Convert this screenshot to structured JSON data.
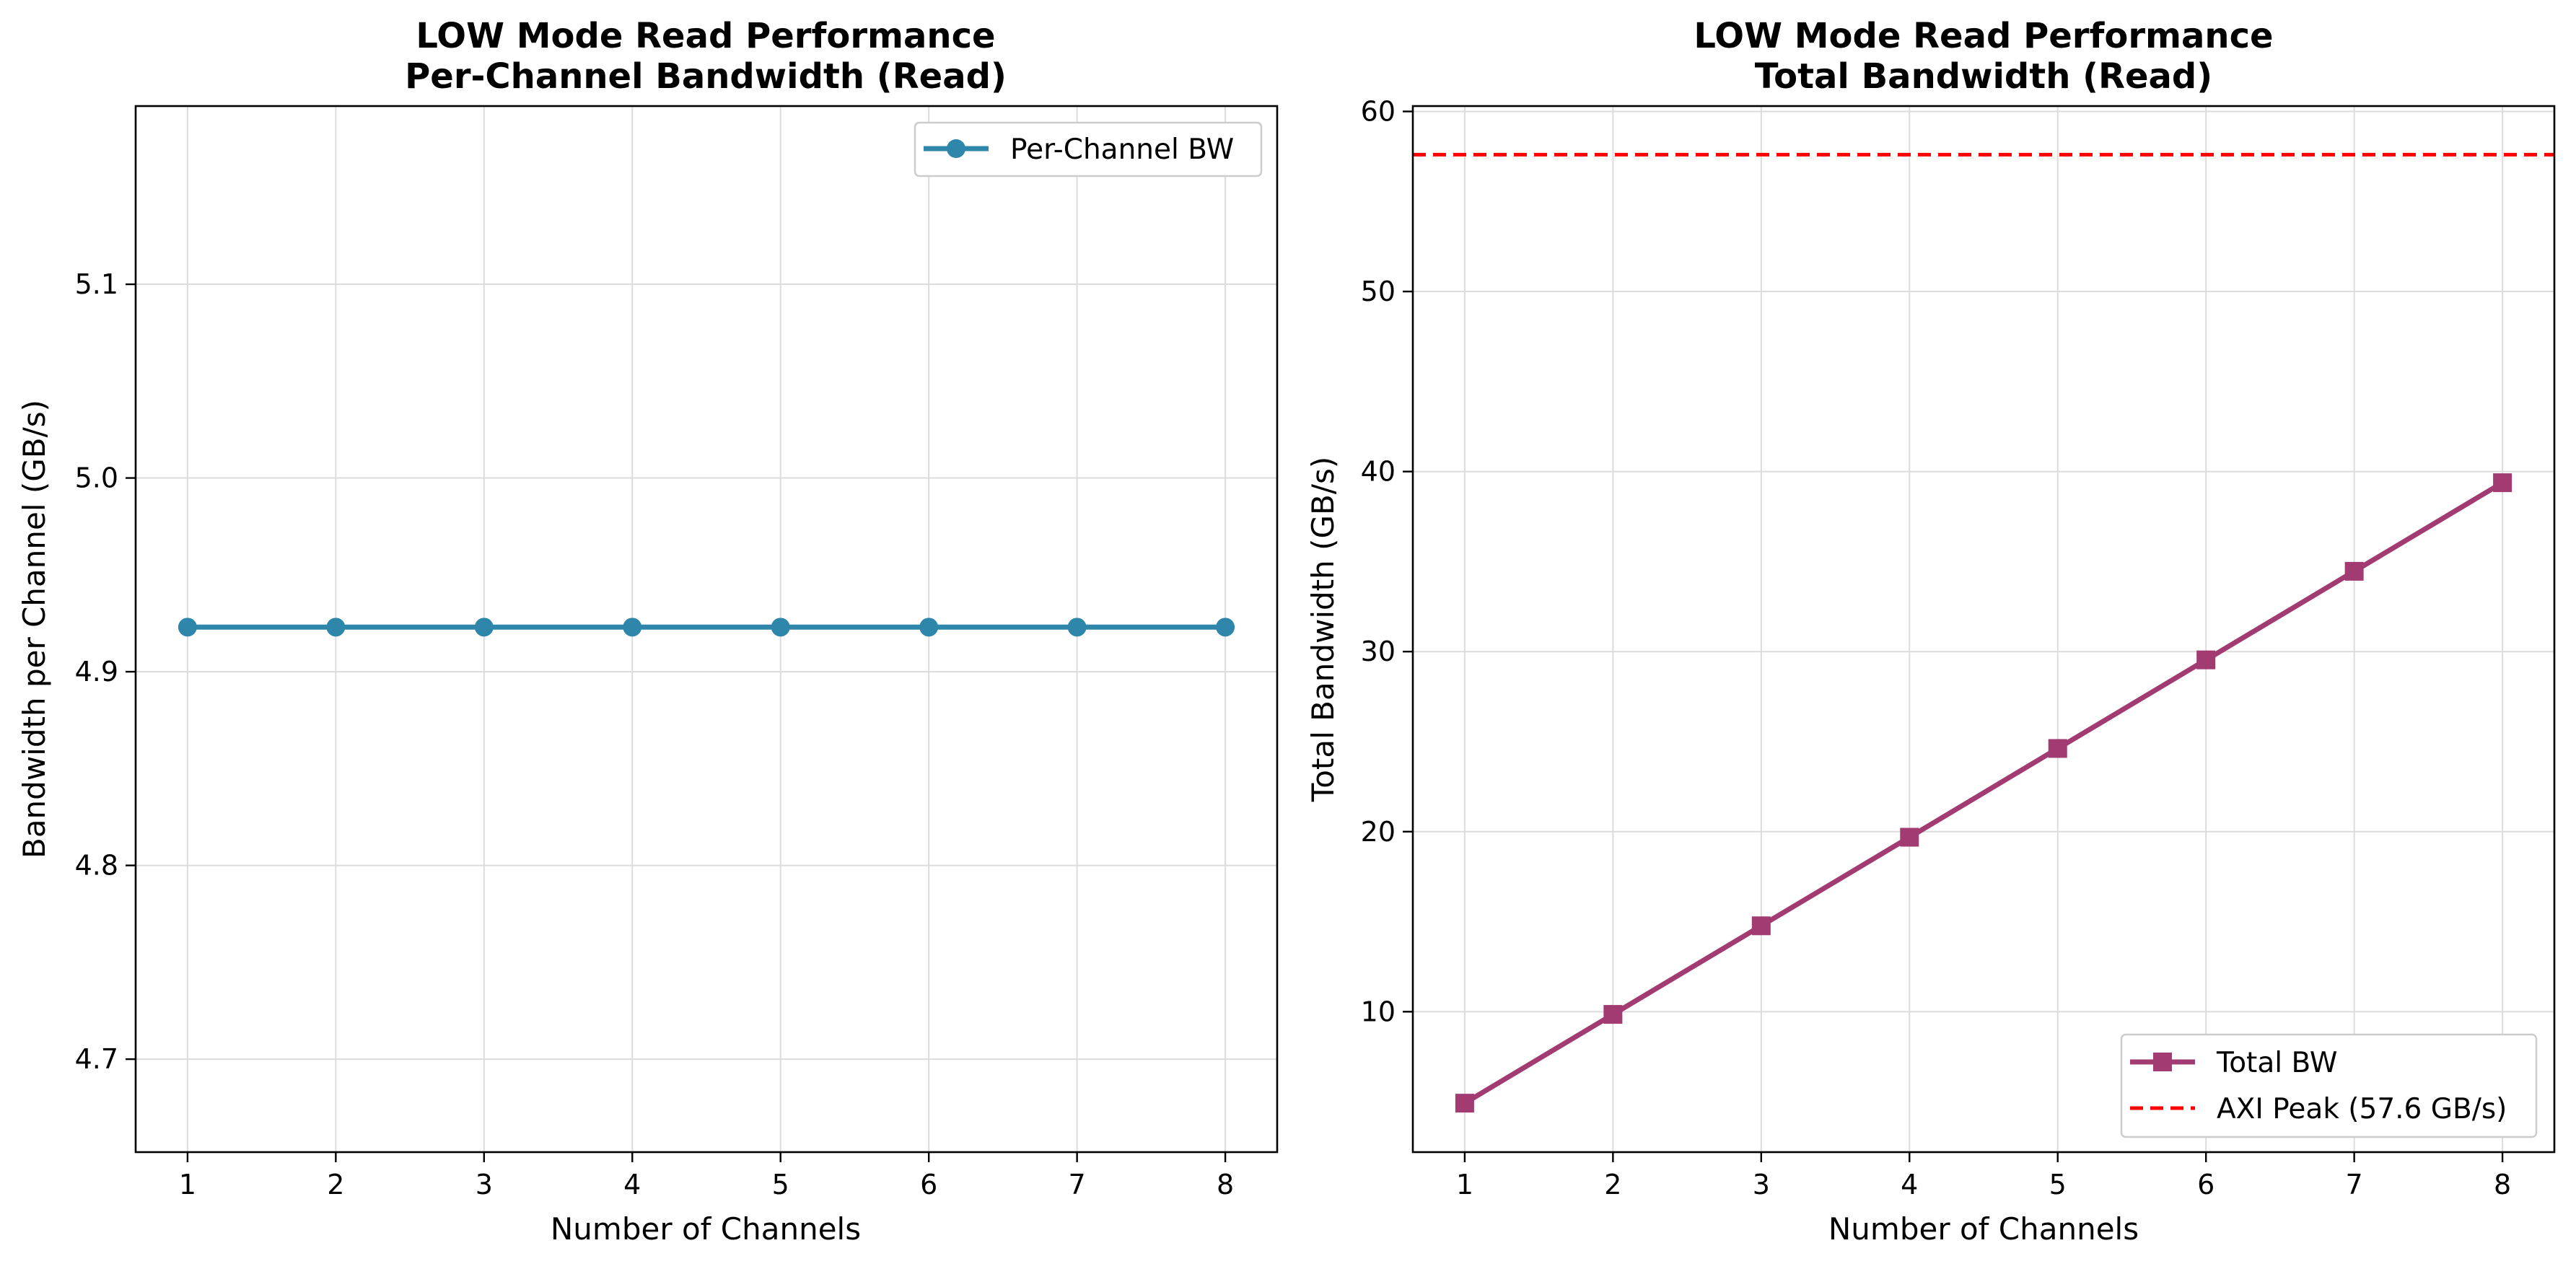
{
  "chart_data": [
    {
      "type": "line",
      "title_line1": "LOW Mode Read Performance",
      "title_line2": "Per-Channel Bandwidth (Read)",
      "xlabel": "Number of Channels",
      "ylabel": "Bandwidth per Channel (GB/s)",
      "x": [
        1,
        2,
        3,
        4,
        5,
        6,
        7,
        8
      ],
      "x_ticks": [
        "1",
        "2",
        "3",
        "4",
        "5",
        "6",
        "7",
        "8"
      ],
      "xlim": [
        0.65,
        8.35
      ],
      "ylim": [
        4.652,
        5.192
      ],
      "y_ticks": [
        4.7,
        4.8,
        4.9,
        5.0,
        5.1
      ],
      "y_tick_labels": [
        "4.7",
        "4.8",
        "4.9",
        "5.0",
        "5.1"
      ],
      "grid": true,
      "legend_position": "top-right",
      "series": [
        {
          "name": "Per-Channel BW",
          "values": [
            4.923,
            4.923,
            4.923,
            4.923,
            4.923,
            4.923,
            4.923,
            4.923
          ],
          "marker": "circle",
          "color": "#2e86ab"
        }
      ]
    },
    {
      "type": "line",
      "title_line1": "LOW Mode Read Performance",
      "title_line2": "Total Bandwidth (Read)",
      "xlabel": "Number of Channels",
      "ylabel": "Total Bandwidth (GB/s)",
      "x": [
        1,
        2,
        3,
        4,
        5,
        6,
        7,
        8
      ],
      "x_ticks": [
        "1",
        "2",
        "3",
        "4",
        "5",
        "6",
        "7",
        "8"
      ],
      "xlim": [
        0.65,
        8.35
      ],
      "ylim": [
        2.2,
        60.3
      ],
      "y_ticks": [
        10,
        20,
        30,
        40,
        50,
        60
      ],
      "y_tick_labels": [
        "10",
        "20",
        "30",
        "40",
        "50",
        "60"
      ],
      "grid": true,
      "legend_position": "bottom-right",
      "series": [
        {
          "name": "Total BW",
          "values": [
            4.92,
            9.85,
            14.77,
            19.69,
            24.62,
            29.54,
            34.46,
            39.38
          ],
          "marker": "square",
          "color": "#a23b72"
        }
      ],
      "reference_line": {
        "name": "AXI Peak (57.6 GB/s)",
        "value": 57.6,
        "style": "dashed",
        "color": "#ff0000"
      }
    }
  ]
}
